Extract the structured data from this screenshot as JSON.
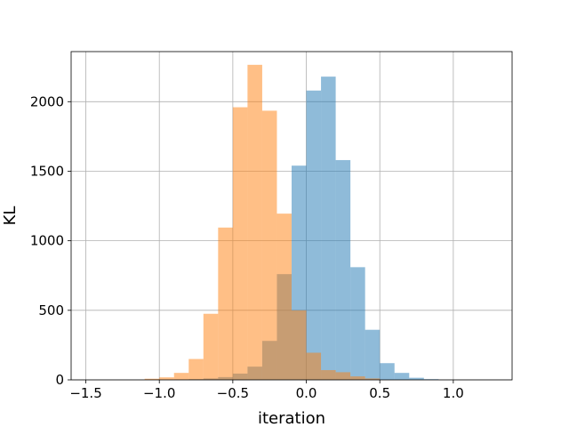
{
  "chart_data": {
    "type": "bar",
    "title": "",
    "xlabel": "iteration",
    "ylabel": "KL",
    "xlim": [
      -1.6,
      1.4
    ],
    "ylim": [
      0,
      2360
    ],
    "xticks": [
      -1.5,
      -1.0,
      -0.5,
      0.0,
      0.5,
      1.0
    ],
    "xtick_labels": [
      "−1.5",
      "−1.0",
      "−0.5",
      "0.0",
      "0.5",
      "1.0"
    ],
    "yticks": [
      0,
      500,
      1000,
      1500,
      2000
    ],
    "ytick_labels": [
      "0",
      "500",
      "1000",
      "1500",
      "2000"
    ],
    "grid": true,
    "legend": "none",
    "series": [
      {
        "color": "#1f77b4",
        "opacity": 0.5,
        "bin_edges": [
          -0.9,
          -0.8,
          -0.7,
          -0.6,
          -0.5,
          -0.4,
          -0.3,
          -0.2,
          -0.1,
          0.0,
          0.1,
          0.2,
          0.3,
          0.4,
          0.5,
          0.6,
          0.7,
          0.8,
          0.9
        ],
        "values": [
          3,
          5,
          10,
          20,
          45,
          95,
          280,
          760,
          1540,
          2080,
          2180,
          1580,
          810,
          360,
          120,
          50,
          15,
          5
        ]
      },
      {
        "color": "#ff7f0e",
        "opacity": 0.5,
        "bin_edges": [
          -1.1,
          -1.0,
          -0.9,
          -0.8,
          -0.7,
          -0.6,
          -0.5,
          -0.4,
          -0.3,
          -0.2,
          -0.1,
          0.0,
          0.1,
          0.2,
          0.3,
          0.4,
          0.5
        ],
        "values": [
          8,
          18,
          50,
          150,
          475,
          1095,
          1960,
          2265,
          1935,
          1195,
          500,
          195,
          70,
          55,
          25,
          10
        ]
      }
    ]
  }
}
